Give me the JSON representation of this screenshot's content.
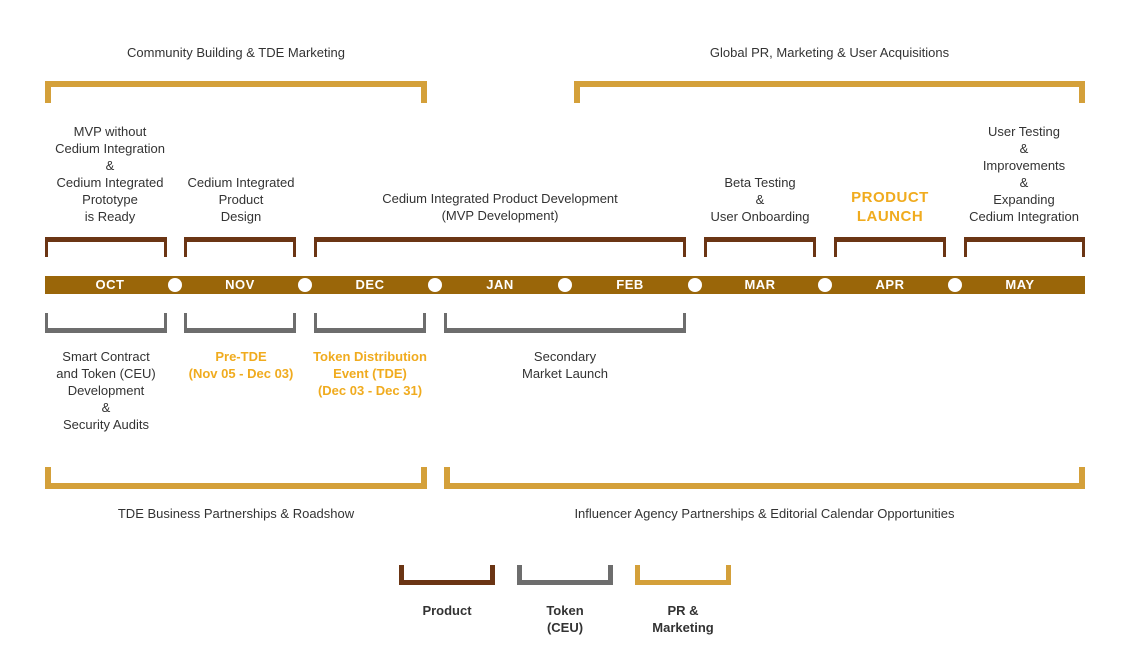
{
  "colors": {
    "product": "#6b3514",
    "token": "#6d6d6d",
    "pr": "#d4a03a",
    "timeline": "#9a6609",
    "highlight": "#f0ab1e"
  },
  "top_brackets": {
    "left": "Community Building & TDE Marketing",
    "right": "Global PR, Marketing & User Acquisitions"
  },
  "bottom_brackets": {
    "left": "TDE Business Partnerships & Roadshow",
    "right": "Influencer Agency Partnerships & Editorial Calendar Opportunities"
  },
  "months": [
    "OCT",
    "NOV",
    "DEC",
    "JAN",
    "FEB",
    "MAR",
    "APR",
    "MAY"
  ],
  "product_items": [
    [
      "MVP without",
      "Cedium Integration",
      "&",
      "Cedium Integrated",
      "Prototype",
      "is Ready"
    ],
    [
      "Cedium Integrated",
      "Product",
      "Design"
    ],
    [
      "Cedium Integrated Product Development",
      "(MVP Development)"
    ],
    [
      "Beta Testing",
      "&",
      "User Onboarding"
    ],
    [
      "PRODUCT",
      "LAUNCH"
    ],
    [
      "User Testing",
      "&",
      "Improvements",
      "&",
      "Expanding",
      "Cedium Integration"
    ]
  ],
  "token_items": [
    [
      "Smart Contract",
      "and Token (CEU)",
      "Development",
      "&",
      "Security Audits"
    ],
    [
      "Pre-TDE",
      "(Nov 05 - Dec 03)"
    ],
    [
      "Token Distribution",
      "Event (TDE)",
      "(Dec 03 - Dec 31)"
    ],
    [
      "Secondary",
      "Market Launch"
    ]
  ],
  "legend": {
    "product": "Product",
    "token": [
      "Token",
      "(CEU)"
    ],
    "pr": [
      "PR &",
      "Marketing"
    ]
  }
}
